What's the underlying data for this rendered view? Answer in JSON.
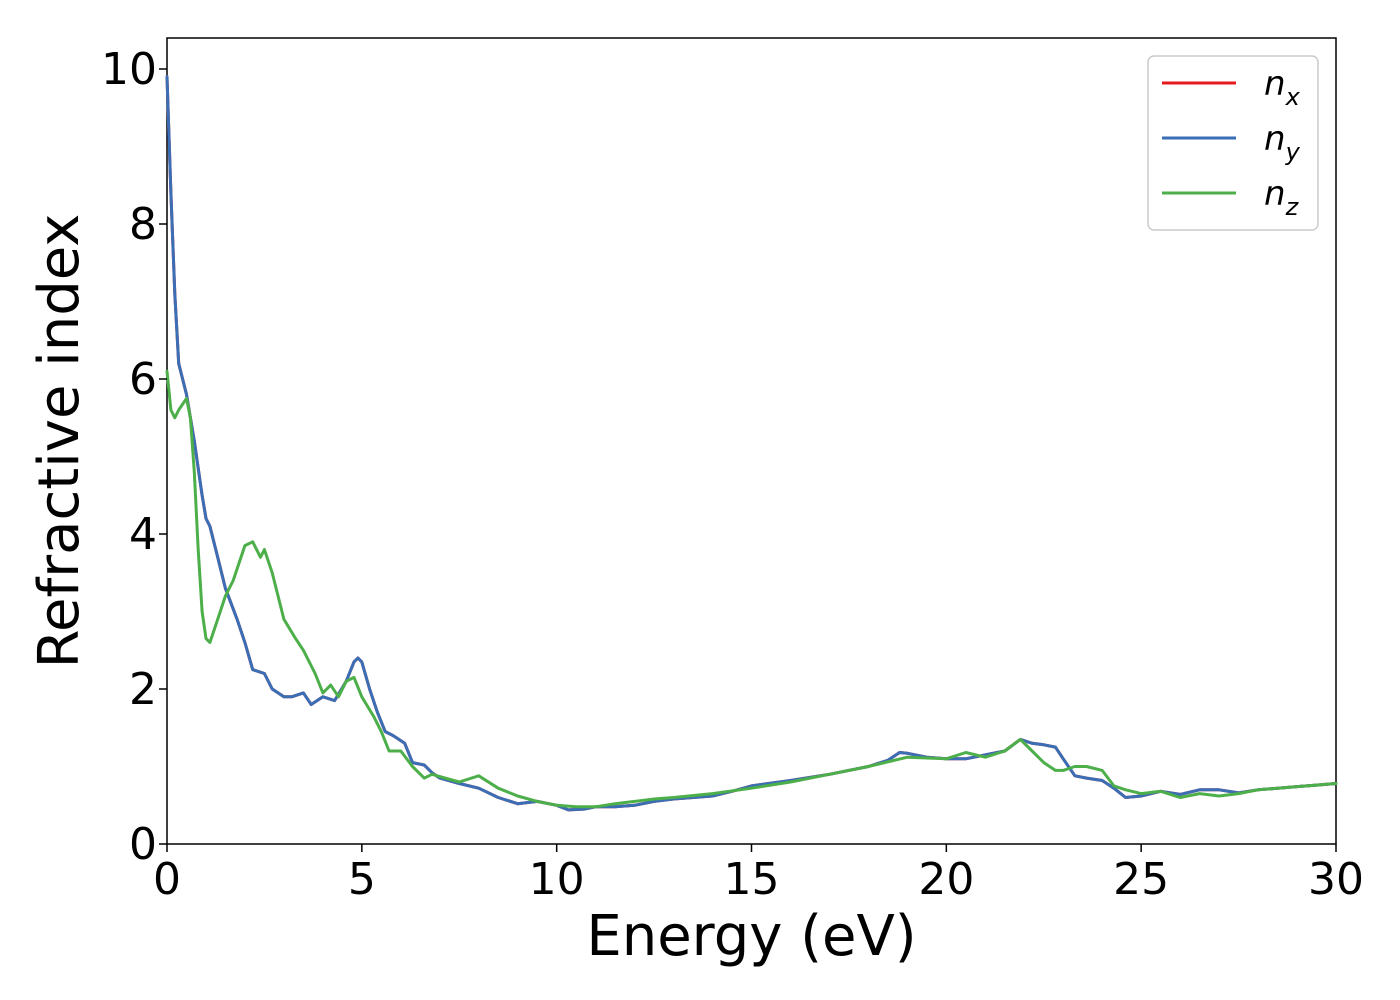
{
  "chart_data": {
    "type": "line",
    "title": "",
    "xlabel": "Energy (eV)",
    "ylabel": "Refractive index",
    "xlim": [
      0,
      30
    ],
    "ylim": [
      0,
      10.4
    ],
    "xticks": [
      "0",
      "5",
      "10",
      "15",
      "20",
      "25",
      "30"
    ],
    "yticks": [
      "0",
      "2",
      "4",
      "6",
      "8",
      "10"
    ],
    "grid": false,
    "legend_position": "top-right",
    "series": [
      {
        "name": "n_x",
        "color": "#e41a1c",
        "x": [
          0.0,
          0.1,
          0.2,
          0.3,
          0.5,
          0.7,
          0.9,
          1.0,
          1.1,
          1.3,
          1.5,
          1.8,
          2.0,
          2.2,
          2.5,
          2.7,
          3.0,
          3.2,
          3.5,
          3.7,
          4.0,
          4.3,
          4.6,
          4.8,
          4.9,
          5.0,
          5.2,
          5.4,
          5.6,
          5.8,
          6.1,
          6.3,
          6.6,
          6.8,
          7.0,
          7.5,
          8.0,
          8.5,
          9.0,
          9.5,
          10.0,
          10.3,
          10.7,
          11.0,
          11.5,
          12.0,
          12.5,
          13.0,
          13.5,
          14.0,
          14.5,
          15.0,
          16.0,
          17.0,
          18.0,
          18.5,
          18.8,
          19.0,
          19.5,
          20.0,
          20.5,
          21.0,
          21.5,
          21.9,
          22.2,
          22.5,
          22.8,
          23.0,
          23.3,
          23.6,
          24.0,
          24.3,
          24.6,
          25.0,
          25.5,
          26.0,
          26.5,
          27.0,
          27.5,
          28.0,
          28.5,
          29.0,
          29.5,
          30.0
        ],
        "y": [
          9.9,
          8.4,
          7.1,
          6.2,
          5.8,
          5.2,
          4.5,
          4.2,
          4.1,
          3.7,
          3.3,
          2.9,
          2.6,
          2.25,
          2.2,
          2.0,
          1.9,
          1.9,
          1.95,
          1.8,
          1.9,
          1.85,
          2.1,
          2.35,
          2.4,
          2.35,
          2.0,
          1.7,
          1.45,
          1.4,
          1.3,
          1.05,
          1.02,
          0.92,
          0.85,
          0.78,
          0.72,
          0.6,
          0.52,
          0.55,
          0.5,
          0.44,
          0.45,
          0.48,
          0.48,
          0.5,
          0.55,
          0.58,
          0.6,
          0.62,
          0.68,
          0.75,
          0.82,
          0.9,
          1.0,
          1.08,
          1.18,
          1.17,
          1.12,
          1.1,
          1.1,
          1.15,
          1.2,
          1.35,
          1.3,
          1.28,
          1.25,
          1.1,
          0.88,
          0.85,
          0.82,
          0.72,
          0.6,
          0.62,
          0.68,
          0.64,
          0.7,
          0.7,
          0.66,
          0.7,
          0.72,
          0.74,
          0.76,
          0.78
        ]
      },
      {
        "name": "n_y",
        "color": "#3a6eb5",
        "x": [
          0.0,
          0.1,
          0.2,
          0.3,
          0.5,
          0.7,
          0.9,
          1.0,
          1.1,
          1.3,
          1.5,
          1.8,
          2.0,
          2.2,
          2.5,
          2.7,
          3.0,
          3.2,
          3.5,
          3.7,
          4.0,
          4.3,
          4.6,
          4.8,
          4.9,
          5.0,
          5.2,
          5.4,
          5.6,
          5.8,
          6.1,
          6.3,
          6.6,
          6.8,
          7.0,
          7.5,
          8.0,
          8.5,
          9.0,
          9.5,
          10.0,
          10.3,
          10.7,
          11.0,
          11.5,
          12.0,
          12.5,
          13.0,
          13.5,
          14.0,
          14.5,
          15.0,
          16.0,
          17.0,
          18.0,
          18.5,
          18.8,
          19.0,
          19.5,
          20.0,
          20.5,
          21.0,
          21.5,
          21.9,
          22.2,
          22.5,
          22.8,
          23.0,
          23.3,
          23.6,
          24.0,
          24.3,
          24.6,
          25.0,
          25.5,
          26.0,
          26.5,
          27.0,
          27.5,
          28.0,
          28.5,
          29.0,
          29.5,
          30.0
        ],
        "y": [
          9.9,
          8.4,
          7.1,
          6.2,
          5.8,
          5.2,
          4.5,
          4.2,
          4.1,
          3.7,
          3.3,
          2.9,
          2.6,
          2.25,
          2.2,
          2.0,
          1.9,
          1.9,
          1.95,
          1.8,
          1.9,
          1.85,
          2.1,
          2.35,
          2.4,
          2.35,
          2.0,
          1.7,
          1.45,
          1.4,
          1.3,
          1.05,
          1.02,
          0.92,
          0.85,
          0.78,
          0.72,
          0.6,
          0.52,
          0.55,
          0.5,
          0.44,
          0.45,
          0.48,
          0.48,
          0.5,
          0.55,
          0.58,
          0.6,
          0.62,
          0.68,
          0.75,
          0.82,
          0.9,
          1.0,
          1.08,
          1.18,
          1.17,
          1.12,
          1.1,
          1.1,
          1.15,
          1.2,
          1.35,
          1.3,
          1.28,
          1.25,
          1.1,
          0.88,
          0.85,
          0.82,
          0.72,
          0.6,
          0.62,
          0.68,
          0.64,
          0.7,
          0.7,
          0.66,
          0.7,
          0.72,
          0.74,
          0.76,
          0.78
        ]
      },
      {
        "name": "n_z",
        "color": "#4daf4a",
        "x": [
          0.0,
          0.1,
          0.2,
          0.3,
          0.5,
          0.6,
          0.7,
          0.8,
          0.9,
          1.0,
          1.1,
          1.3,
          1.5,
          1.7,
          2.0,
          2.2,
          2.4,
          2.5,
          2.7,
          3.0,
          3.3,
          3.5,
          3.8,
          4.0,
          4.2,
          4.4,
          4.6,
          4.8,
          5.0,
          5.3,
          5.5,
          5.7,
          6.0,
          6.3,
          6.6,
          6.8,
          7.0,
          7.5,
          8.0,
          8.5,
          9.0,
          9.5,
          10.0,
          10.5,
          11.0,
          11.5,
          12.0,
          12.5,
          13.0,
          14.0,
          15.0,
          16.0,
          17.0,
          18.0,
          19.0,
          20.0,
          20.5,
          21.0,
          21.5,
          21.9,
          22.2,
          22.5,
          22.8,
          23.0,
          23.3,
          23.6,
          24.0,
          24.3,
          24.6,
          25.0,
          25.5,
          26.0,
          26.5,
          27.0,
          27.5,
          28.0,
          28.5,
          29.0,
          29.5,
          30.0
        ],
        "y": [
          6.1,
          5.6,
          5.5,
          5.6,
          5.75,
          5.5,
          4.8,
          3.8,
          3.0,
          2.65,
          2.6,
          2.9,
          3.2,
          3.4,
          3.85,
          3.9,
          3.7,
          3.8,
          3.5,
          2.9,
          2.65,
          2.5,
          2.2,
          1.95,
          2.05,
          1.9,
          2.1,
          2.15,
          1.9,
          1.65,
          1.45,
          1.2,
          1.2,
          1.0,
          0.85,
          0.9,
          0.87,
          0.8,
          0.88,
          0.72,
          0.62,
          0.55,
          0.5,
          0.48,
          0.48,
          0.52,
          0.55,
          0.58,
          0.6,
          0.65,
          0.72,
          0.8,
          0.9,
          1.0,
          1.12,
          1.1,
          1.18,
          1.12,
          1.2,
          1.35,
          1.2,
          1.05,
          0.95,
          0.95,
          1.0,
          1.0,
          0.95,
          0.75,
          0.7,
          0.65,
          0.68,
          0.6,
          0.65,
          0.62,
          0.65,
          0.7,
          0.72,
          0.74,
          0.76,
          0.78
        ]
      }
    ]
  },
  "legend": [
    {
      "base": "n",
      "sub": "x",
      "color": "#e41a1c"
    },
    {
      "base": "n",
      "sub": "y",
      "color": "#3a6eb5"
    },
    {
      "base": "n",
      "sub": "z",
      "color": "#4daf4a"
    }
  ]
}
